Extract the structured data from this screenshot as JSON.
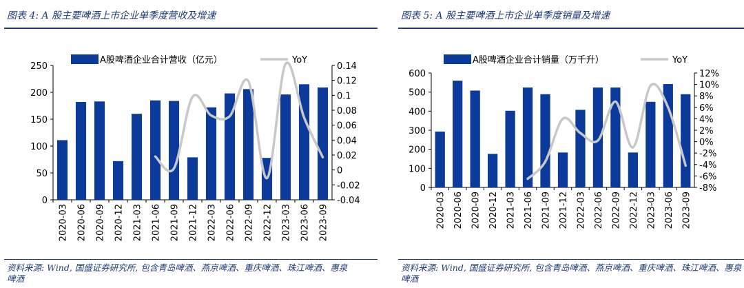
{
  "left": {
    "title": "图表 4:  A 股主要啤酒上市企业单季度营收及增速",
    "source": "资料来源:  Wind,  国盛证券研究所,  包含青岛啤酒、燕京啤酒、重庆啤酒、珠江啤酒、惠泉啤酒",
    "chart_data": {
      "type": "bar",
      "categories": [
        "2020-03",
        "2020-06",
        "2020-09",
        "2020-12",
        "2021-03",
        "2021-06",
        "2021-09",
        "2021-12",
        "2022-03",
        "2022-06",
        "2022-09",
        "2022-12",
        "2023-03",
        "2023-06",
        "2023-09"
      ],
      "series": [
        {
          "name": "A股啤酒企业合计营收（亿元）",
          "type": "bar",
          "axis": "left",
          "color": "#0b3a9a",
          "values": [
            111,
            182,
            183,
            72,
            160,
            185,
            184,
            79,
            172,
            198,
            206,
            78,
            196,
            215,
            209
          ]
        },
        {
          "name": "YoY",
          "type": "line",
          "axis": "right",
          "color": "#c8c8c8",
          "values": [
            null,
            null,
            null,
            null,
            null,
            0.018,
            0.002,
            0.098,
            0.073,
            0.072,
            0.119,
            -0.011,
            0.142,
            0.07,
            0.017
          ]
        }
      ],
      "ylim": [
        0,
        250
      ],
      "yticks": [
        0,
        50,
        100,
        150,
        200,
        250
      ],
      "y2lim": [
        -0.04,
        0.14
      ],
      "y2ticks": [
        "-0.04",
        "-0.02",
        "0",
        "0.02",
        "0.04",
        "0.06",
        "0.08",
        "0.1",
        "0.12",
        "0.14"
      ],
      "legend": "top"
    }
  },
  "right": {
    "title": "图表 5:  A 股主要啤酒上市企业单季度销量及增速",
    "source": "资料来源:  Wind,  国盛证券研究所,  包含青岛啤酒、燕京啤酒、重庆啤酒、珠江啤酒、惠泉啤酒",
    "chart_data": {
      "type": "bar",
      "categories": [
        "2020-03",
        "2020-06",
        "2020-09",
        "2020-12",
        "2021-03",
        "2021-06",
        "2021-09",
        "2021-12",
        "2022-03",
        "2022-06",
        "2022-09",
        "2022-12",
        "2023-03",
        "2023-06",
        "2023-09"
      ],
      "series": [
        {
          "name": "A股啤酒企业合计销量（万千升）",
          "type": "bar",
          "axis": "left",
          "color": "#0b3a9a",
          "values": [
            293,
            560,
            508,
            176,
            402,
            524,
            489,
            183,
            407,
            524,
            524,
            183,
            449,
            542,
            489
          ]
        },
        {
          "name": "YoY",
          "type": "line",
          "axis": "right",
          "color": "#c8c8c8",
          "values": [
            null,
            null,
            null,
            null,
            null,
            -6.5,
            -3.5,
            4.0,
            1.5,
            0.2,
            7.0,
            -1.0,
            9.8,
            6.0,
            -4.2
          ]
        }
      ],
      "ylim": [
        0,
        600
      ],
      "yticks": [
        0,
        100,
        200,
        300,
        400,
        500,
        600
      ],
      "y2lim": [
        -8,
        12
      ],
      "y2ticks": [
        "-8%",
        "-6%",
        "-4%",
        "-2%",
        "0%",
        "2%",
        "4%",
        "6%",
        "8%",
        "10%",
        "12%"
      ],
      "legend": "top"
    }
  }
}
